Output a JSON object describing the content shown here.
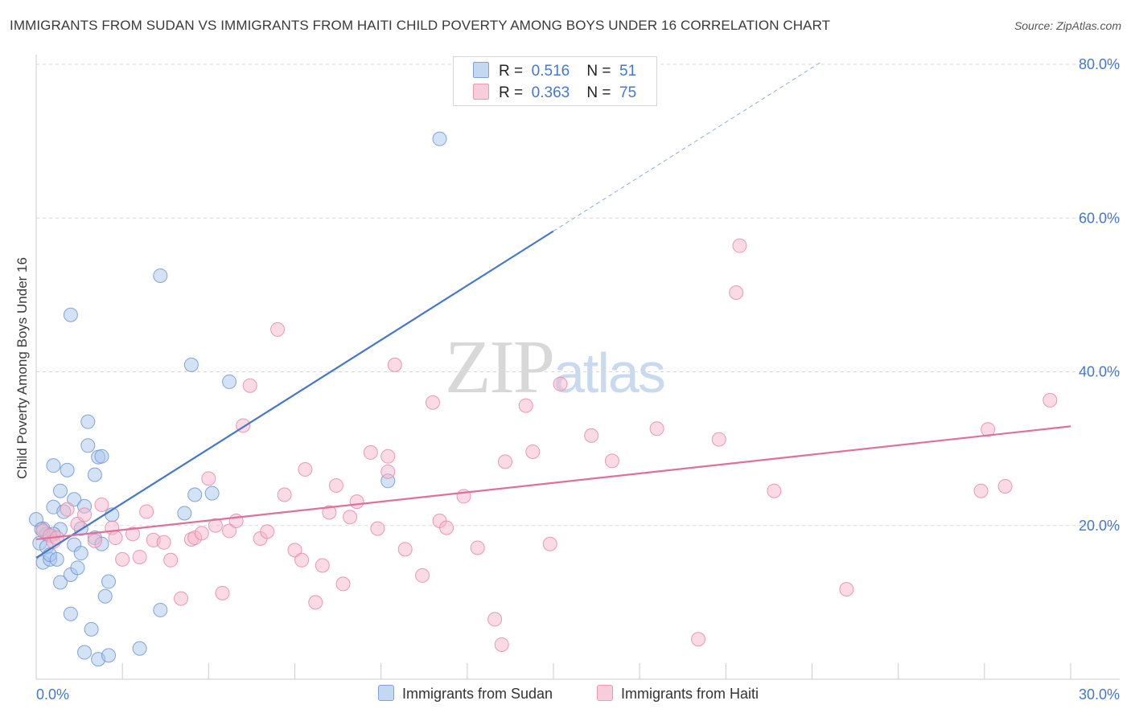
{
  "title": "IMMIGRANTS FROM SUDAN VS IMMIGRANTS FROM HAITI CHILD POVERTY AMONG BOYS UNDER 16 CORRELATION CHART",
  "source": "Source: ZipAtlas.com",
  "watermark": {
    "zip": "ZIP",
    "atlas": "atlas"
  },
  "legend": {
    "r_label": "R =",
    "n_label": "N =",
    "sudan": {
      "r": "0.516",
      "n": "51"
    },
    "haiti": {
      "r": "0.363",
      "n": "75"
    }
  },
  "bottom_legend": {
    "sudan": "Immigrants from Sudan",
    "haiti": "Immigrants from Haiti"
  },
  "colors": {
    "sudan": "#4677c8",
    "sudan_fill": "#a9c6ec",
    "haiti": "#e0709a",
    "haiti_fill": "#f5b6ca",
    "axis_label": "#4677c8",
    "grid": "#d8d8d8"
  },
  "chart_data": {
    "type": "scatter",
    "ylabel": "Child Poverty Among Boys Under 16",
    "xlim": [
      0,
      30
    ],
    "ylim": [
      0,
      80
    ],
    "x_ticks": [
      "0.0%",
      "30.0%"
    ],
    "y_ticks": [
      {
        "value": 20,
        "label": "20.0%"
      },
      {
        "value": 40,
        "label": "40.0%"
      },
      {
        "value": 60,
        "label": "60.0%"
      },
      {
        "value": 80,
        "label": "80.0%"
      }
    ],
    "grid": true,
    "series": [
      {
        "name": "Immigrants from Sudan",
        "color": "#4677c8",
        "trend": {
          "x0": 0,
          "y0": 15.8,
          "x1": 15,
          "y1": 58.3,
          "dashed_to_x": 22.8,
          "dashed_to_y": 80.4
        },
        "points": [
          [
            0.1,
            17.7
          ],
          [
            0.2,
            19.6
          ],
          [
            0.2,
            15.2
          ],
          [
            0.3,
            18.9
          ],
          [
            0.3,
            17.2
          ],
          [
            0.4,
            15.6
          ],
          [
            0.4,
            16.2
          ],
          [
            0.5,
            27.8
          ],
          [
            0.5,
            22.4
          ],
          [
            0.6,
            15.6
          ],
          [
            0.7,
            24.5
          ],
          [
            0.7,
            19.5
          ],
          [
            0.7,
            12.6
          ],
          [
            0.8,
            21.8
          ],
          [
            0.9,
            27.2
          ],
          [
            1.0,
            13.6
          ],
          [
            1.0,
            8.5
          ],
          [
            1.1,
            23.4
          ],
          [
            1.1,
            17.5
          ],
          [
            1.2,
            14.5
          ],
          [
            1.3,
            19.6
          ],
          [
            1.3,
            16.4
          ],
          [
            1.4,
            3.5
          ],
          [
            1.4,
            22.5
          ],
          [
            1.5,
            30.4
          ],
          [
            1.5,
            33.5
          ],
          [
            1.6,
            6.5
          ],
          [
            1.7,
            26.6
          ],
          [
            1.7,
            18.4
          ],
          [
            1.8,
            2.6
          ],
          [
            1.8,
            28.9
          ],
          [
            1.9,
            17.6
          ],
          [
            1.9,
            29.0
          ],
          [
            2.0,
            10.8
          ],
          [
            2.1,
            12.7
          ],
          [
            2.1,
            3.1
          ],
          [
            2.2,
            21.4
          ],
          [
            3.0,
            4.0
          ],
          [
            3.6,
            52.5
          ],
          [
            3.6,
            9.0
          ],
          [
            4.3,
            21.6
          ],
          [
            4.5,
            40.9
          ],
          [
            4.6,
            24.0
          ],
          [
            5.1,
            24.2
          ],
          [
            5.6,
            38.7
          ],
          [
            10.2,
            25.8
          ],
          [
            11.7,
            70.3
          ],
          [
            1.0,
            47.4
          ],
          [
            0.0,
            20.8
          ],
          [
            0.15,
            19.5
          ],
          [
            0.5,
            18.9
          ]
        ]
      },
      {
        "name": "Immigrants from Haiti",
        "color": "#e0709a",
        "trend": {
          "x0": 0,
          "y0": 18.2,
          "x1": 30,
          "y1": 32.9
        },
        "points": [
          [
            0.2,
            19.3
          ],
          [
            0.4,
            18.7
          ],
          [
            0.5,
            17.9
          ],
          [
            0.6,
            18.4
          ],
          [
            0.9,
            22.1
          ],
          [
            1.2,
            20.2
          ],
          [
            1.4,
            21.4
          ],
          [
            1.7,
            18.0
          ],
          [
            1.9,
            22.7
          ],
          [
            2.2,
            19.7
          ],
          [
            2.3,
            18.4
          ],
          [
            2.5,
            15.6
          ],
          [
            2.8,
            18.9
          ],
          [
            3.0,
            15.9
          ],
          [
            3.2,
            21.8
          ],
          [
            3.4,
            18.1
          ],
          [
            3.7,
            17.8
          ],
          [
            3.9,
            15.5
          ],
          [
            4.2,
            10.5
          ],
          [
            4.5,
            18.2
          ],
          [
            4.6,
            18.4
          ],
          [
            4.8,
            19.0
          ],
          [
            5.0,
            26.1
          ],
          [
            5.2,
            20.0
          ],
          [
            5.4,
            11.2
          ],
          [
            5.6,
            19.3
          ],
          [
            5.8,
            20.6
          ],
          [
            6.2,
            38.2
          ],
          [
            6.0,
            33.0
          ],
          [
            6.5,
            18.3
          ],
          [
            6.7,
            19.2
          ],
          [
            7.0,
            45.5
          ],
          [
            7.2,
            24.0
          ],
          [
            7.5,
            16.8
          ],
          [
            7.7,
            15.5
          ],
          [
            7.8,
            27.3
          ],
          [
            8.1,
            10.0
          ],
          [
            8.3,
            14.8
          ],
          [
            8.5,
            21.7
          ],
          [
            8.7,
            25.2
          ],
          [
            8.9,
            12.4
          ],
          [
            9.1,
            21.1
          ],
          [
            9.3,
            23.1
          ],
          [
            9.7,
            29.5
          ],
          [
            9.9,
            19.6
          ],
          [
            10.2,
            27.0
          ],
          [
            10.4,
            40.9
          ],
          [
            10.2,
            29.0
          ],
          [
            10.7,
            16.9
          ],
          [
            11.2,
            13.5
          ],
          [
            11.5,
            36.0
          ],
          [
            11.7,
            20.6
          ],
          [
            11.9,
            19.7
          ],
          [
            12.4,
            23.8
          ],
          [
            12.8,
            17.1
          ],
          [
            13.3,
            7.8
          ],
          [
            13.5,
            4.5
          ],
          [
            13.6,
            28.3
          ],
          [
            14.2,
            35.6
          ],
          [
            14.4,
            29.6
          ],
          [
            14.9,
            17.6
          ],
          [
            15.2,
            38.4
          ],
          [
            16.1,
            31.7
          ],
          [
            16.7,
            28.4
          ],
          [
            18.0,
            32.6
          ],
          [
            19.2,
            5.2
          ],
          [
            19.8,
            31.2
          ],
          [
            20.3,
            50.3
          ],
          [
            20.4,
            56.4
          ],
          [
            21.4,
            24.5
          ],
          [
            23.5,
            11.7
          ],
          [
            27.4,
            24.5
          ],
          [
            27.6,
            32.5
          ],
          [
            28.1,
            25.1
          ],
          [
            29.4,
            36.3
          ]
        ]
      }
    ]
  }
}
